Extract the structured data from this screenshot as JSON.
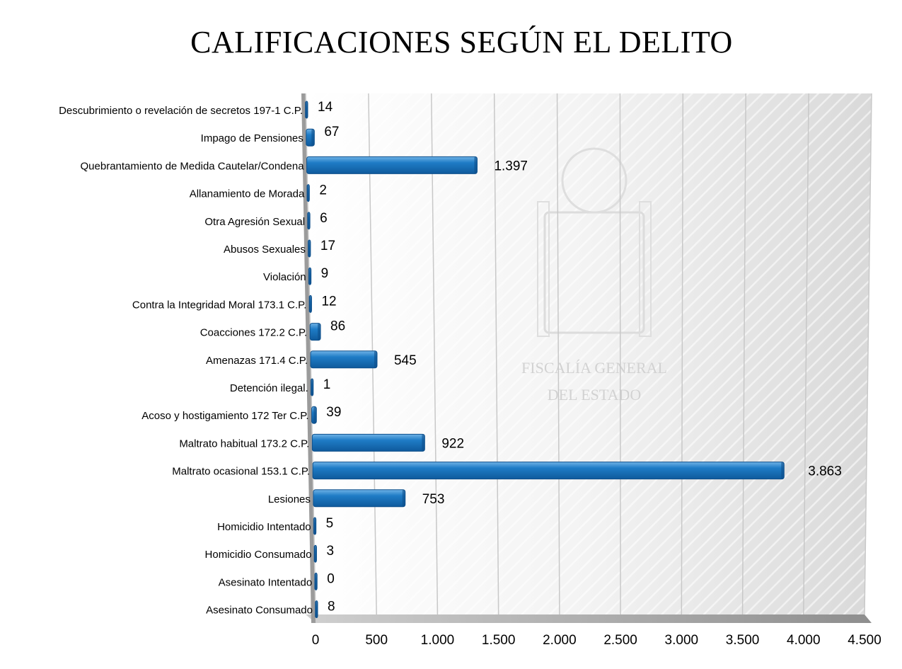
{
  "chart_data": {
    "type": "bar",
    "orientation": "horizontal",
    "title": "CALIFICACIONES SEGÚN EL DELITO",
    "categories": [
      "Descubrimiento o revelación de secretos 197-1 C.P.",
      "Impago de Pensiones",
      "Quebrantamiento de Medida Cautelar/Condena",
      "Allanamiento de Morada",
      "Otra Agresión Sexual",
      "Abusos Sexuales",
      "Violación",
      "Contra la Integridad Moral 173.1 C.P.",
      "Coacciones 172.2 C.P.",
      "Amenazas 171.4 C.P.",
      "Detención ilegal.",
      "Acoso y hostigamiento 172 Ter C.P.",
      "Maltrato habitual 173.2 C.P.",
      "Maltrato ocasional 153.1 C.P.",
      "Lesiones",
      "Homicidio Intentado",
      "Homicidio Consumado",
      "Asesinato Intentado",
      "Asesinato Consumado"
    ],
    "values": [
      14,
      67,
      1397,
      2,
      6,
      17,
      9,
      12,
      86,
      545,
      1,
      39,
      922,
      3863,
      753,
      5,
      3,
      0,
      8
    ],
    "value_labels": [
      "14",
      "67",
      "1.397",
      "2",
      "6",
      "17",
      "9",
      "12",
      "86",
      "545",
      "1",
      "39",
      "922",
      "3.863",
      "753",
      "5",
      "3",
      "0",
      "8"
    ],
    "xlim": [
      0,
      4500
    ],
    "x_ticks": [
      0,
      500,
      1000,
      1500,
      2000,
      2500,
      3000,
      3500,
      4000,
      4500
    ],
    "x_tick_labels": [
      "0",
      "500",
      "1.000",
      "1.500",
      "2.000",
      "2.500",
      "3.000",
      "3.500",
      "4.000",
      "4.500"
    ],
    "xlabel": "",
    "ylabel": "",
    "grid": true,
    "legend": "none",
    "bar_color": "#1a74c0",
    "watermark": [
      "FISCALÍA GENERAL",
      "DEL ESTADO"
    ]
  },
  "colors": {
    "bar": "#1a74c0",
    "bar_dark": "#0e4f8a",
    "bar_light": "#5aa6e0",
    "plot_wall": "#f2f2f2",
    "floor": "#9a9a9a",
    "grid": "#c8c8c8"
  }
}
